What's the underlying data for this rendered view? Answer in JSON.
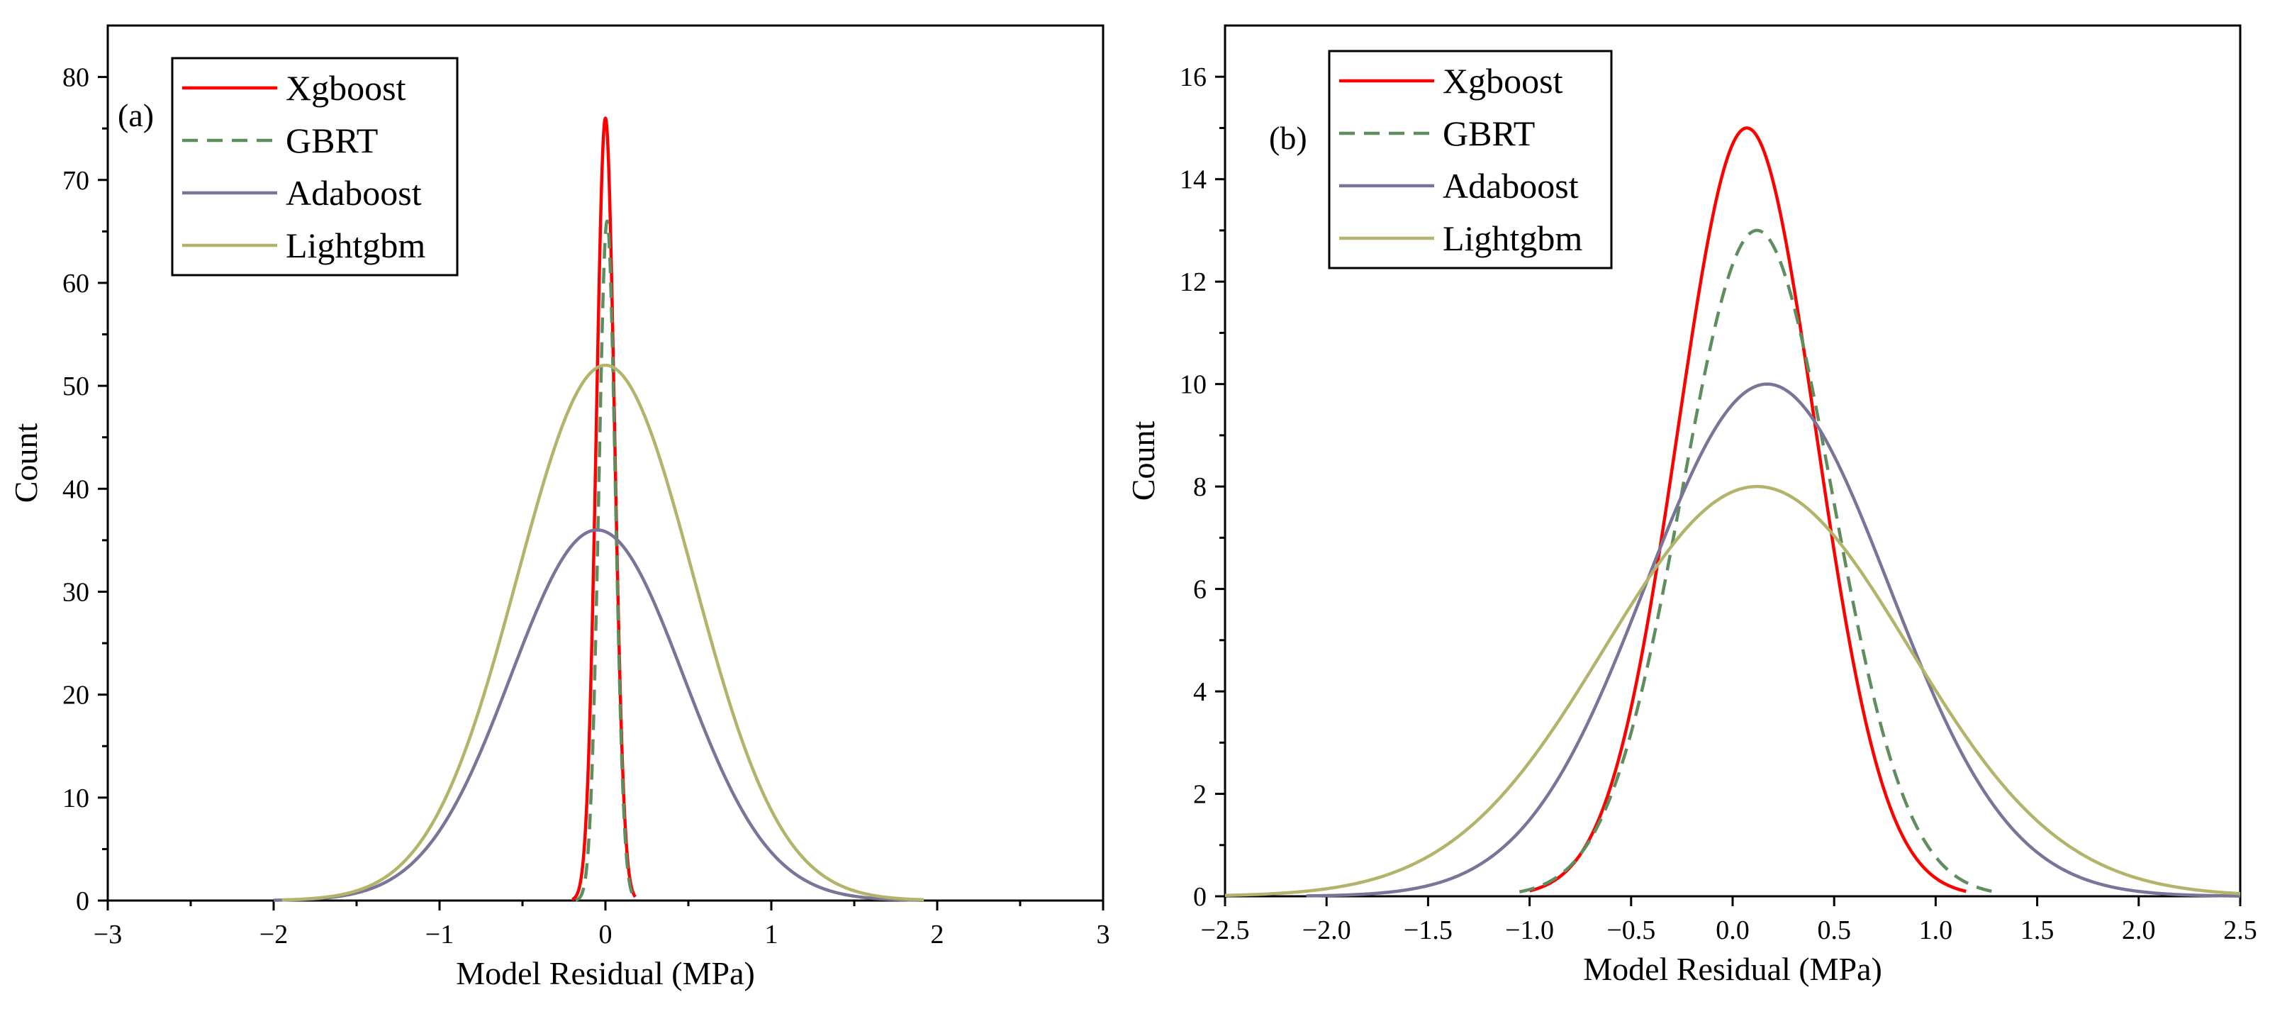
{
  "chart_data": [
    {
      "type": "line",
      "panel_label": "(a)",
      "xlabel": "Model Residual (MPa)",
      "ylabel": "Count",
      "xlim": [
        -3,
        3
      ],
      "ylim": [
        0,
        85
      ],
      "xticks": [
        -3,
        -2,
        -1,
        0,
        1,
        2,
        3
      ],
      "xtick_labels": [
        "−3",
        "−2",
        "−1",
        "0",
        "1",
        "2",
        "3"
      ],
      "yticks": [
        0,
        10,
        20,
        30,
        40,
        50,
        60,
        70,
        80
      ],
      "ytick_labels": [
        "0",
        "10",
        "20",
        "30",
        "40",
        "50",
        "60",
        "70",
        "80"
      ],
      "legend_position": "top-left",
      "series": [
        {
          "name": "Xgboost",
          "color": "#ff0000",
          "dash": "solid",
          "curve": "normal",
          "peak": 76,
          "mean": 0.0,
          "sd": 0.055,
          "x_range": [
            -0.2,
            0.18
          ]
        },
        {
          "name": "GBRT",
          "color": "#5e8d5e",
          "dash": "dashed",
          "curve": "normal",
          "peak": 66,
          "mean": 0.01,
          "sd": 0.05,
          "x_range": [
            -0.18,
            0.18
          ]
        },
        {
          "name": "Adaboost",
          "color": "#7b7499",
          "dash": "solid",
          "curve": "normal",
          "peak": 36,
          "mean": -0.05,
          "sd": 0.52,
          "x_range": [
            -2.0,
            1.9
          ]
        },
        {
          "name": "Lightgbm",
          "color": "#b3b36b",
          "dash": "solid",
          "curve": "normal",
          "peak": 52,
          "mean": 0.0,
          "sd": 0.53,
          "x_range": [
            -1.95,
            1.92
          ]
        }
      ]
    },
    {
      "type": "line",
      "panel_label": "(b)",
      "xlabel": "Model Residual (MPa)",
      "ylabel": "Count",
      "xlim": [
        -2.5,
        2.5
      ],
      "ylim": [
        0,
        17
      ],
      "xticks": [
        -2.5,
        -2.0,
        -1.5,
        -1.0,
        -0.5,
        0.0,
        0.5,
        1.0,
        1.5,
        2.0,
        2.5
      ],
      "xtick_labels": [
        "−2.5",
        "−2.0",
        "−1.5",
        "−1.0",
        "−0.5",
        "0.0",
        "0.5",
        "1.0",
        "1.5",
        "2.0",
        "2.5"
      ],
      "yticks": [
        0,
        2,
        4,
        6,
        8,
        10,
        12,
        14,
        16
      ],
      "ytick_labels": [
        "0",
        "2",
        "4",
        "6",
        "8",
        "10",
        "12",
        "14",
        "16"
      ],
      "legend_position": "top-left",
      "series": [
        {
          "name": "Xgboost",
          "color": "#ff0000",
          "dash": "solid",
          "curve": "normal",
          "peak": 15,
          "mean": 0.07,
          "sd": 0.34,
          "x_range": [
            -1.0,
            1.15
          ]
        },
        {
          "name": "GBRT",
          "color": "#5e8d5e",
          "dash": "dashed",
          "curve": "normal",
          "peak": 13,
          "mean": 0.12,
          "sd": 0.37,
          "x_range": [
            -1.05,
            1.28
          ]
        },
        {
          "name": "Adaboost",
          "color": "#7b7499",
          "dash": "solid",
          "curve": "normal",
          "peak": 10,
          "mean": 0.17,
          "sd": 0.6,
          "x_range": [
            -2.1,
            2.5
          ]
        },
        {
          "name": "Lightgbm",
          "color": "#b3b36b",
          "dash": "solid",
          "curve": "normal",
          "peak": 8,
          "mean": 0.12,
          "sd": 0.75,
          "x_range": [
            -2.5,
            2.5
          ]
        }
      ]
    }
  ]
}
